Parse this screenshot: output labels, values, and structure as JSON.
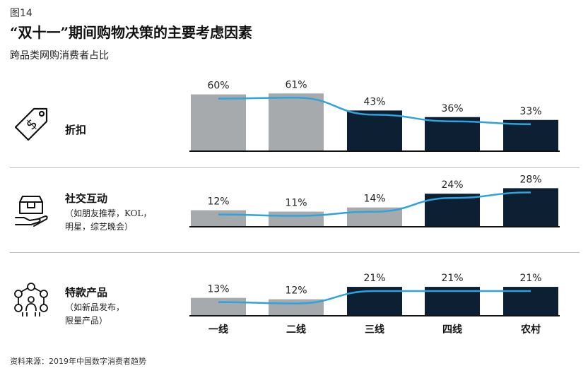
{
  "figure_label": "图14",
  "title": "“双十一”期间购物决策的主要考虑因素",
  "subtitle": "跨品类网购消费者占比",
  "source": "资料来源：2019年中国数字消费者趋势",
  "rows": [
    {
      "label": "折扣",
      "note_lines": [],
      "icon": "price-tag-icon"
    },
    {
      "label": "社交互动",
      "note_lines": [
        "（如朋友推荐，KOL，",
        "明星，综艺晚会）"
      ],
      "icon": "box-in-hand-icon"
    },
    {
      "label": "特款产品",
      "note_lines": [
        "（如新品发布，",
        "限量产品）"
      ],
      "icon": "network-people-icon"
    }
  ],
  "colors": {
    "light_bar": "#a6aaad",
    "dark_bar": "#0c1f33",
    "trend_line": "#2fa3db",
    "baseline": "#111111"
  },
  "chart_data": {
    "type": "bar",
    "categories": [
      "一线",
      "二线",
      "三线",
      "四线",
      "农村"
    ],
    "series": [
      {
        "name": "折扣",
        "values": [
          60,
          61,
          43,
          36,
          33
        ],
        "labels": [
          "60%",
          "61%",
          "43%",
          "36%",
          "33%"
        ],
        "dark_from_index": 2
      },
      {
        "name": "社交互动",
        "values": [
          12,
          11,
          14,
          24,
          28
        ],
        "labels": [
          "12%",
          "11%",
          "14%",
          "24%",
          "28%"
        ],
        "dark_from_index": 3
      },
      {
        "name": "特款产品",
        "values": [
          13,
          12,
          21,
          21,
          21
        ],
        "labels": [
          "13%",
          "12%",
          "21%",
          "21%",
          "21%"
        ],
        "dark_from_index": 2
      }
    ],
    "unit": "%",
    "trend_line": true
  }
}
